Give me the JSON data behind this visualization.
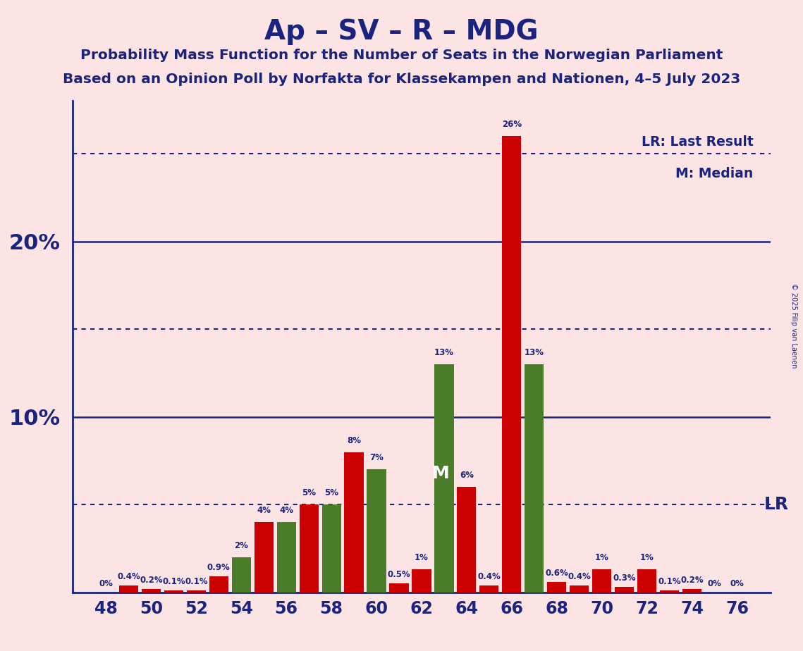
{
  "title": "Ap – SV – R – MDG",
  "subtitle1": "Probability Mass Function for the Number of Seats in the Norwegian Parliament",
  "subtitle2": "Based on an Opinion Poll by Norfakta for Klassekampen and Nationen, 4–5 July 2023",
  "copyright": "© 2025 Filip van Laenen",
  "background_color": "#fce4e4",
  "bar_color_red": "#cc0000",
  "bar_color_green": "#4a7c2a",
  "text_color": "#1a237e",
  "lr_label": "LR: Last Result",
  "m_label": "M: Median",
  "lr_line_y": 5.0,
  "median_seat": 63,
  "seats": [
    48,
    49,
    50,
    51,
    52,
    53,
    54,
    55,
    56,
    57,
    58,
    59,
    60,
    61,
    62,
    63,
    64,
    65,
    66,
    67,
    68,
    69,
    70,
    71,
    72,
    73,
    74,
    75,
    76
  ],
  "probabilities": [
    0.0,
    0.4,
    0.2,
    0.1,
    0.1,
    0.9,
    2.0,
    4.0,
    4.0,
    5.0,
    5.0,
    8.0,
    7.0,
    0.5,
    1.3,
    13.0,
    6.0,
    0.4,
    26.0,
    13.0,
    0.6,
    0.4,
    1.3,
    0.3,
    1.3,
    0.1,
    0.2,
    0.0,
    0.0
  ],
  "bar_colors": [
    "r",
    "r",
    "r",
    "r",
    "r",
    "r",
    "g",
    "r",
    "g",
    "r",
    "g",
    "r",
    "g",
    "r",
    "r",
    "g",
    "r",
    "r",
    "r",
    "g",
    "r",
    "r",
    "r",
    "r",
    "r",
    "r",
    "r",
    "r",
    "r"
  ],
  "ylim": [
    0,
    28
  ],
  "xlim": [
    46.5,
    77.5
  ],
  "xticks": [
    48,
    50,
    52,
    54,
    56,
    58,
    60,
    62,
    64,
    66,
    68,
    70,
    72,
    74,
    76
  ],
  "solid_line_pcts": [
    10,
    20
  ],
  "dotted_line_pcts": [
    5.0,
    15.0,
    25.0
  ]
}
